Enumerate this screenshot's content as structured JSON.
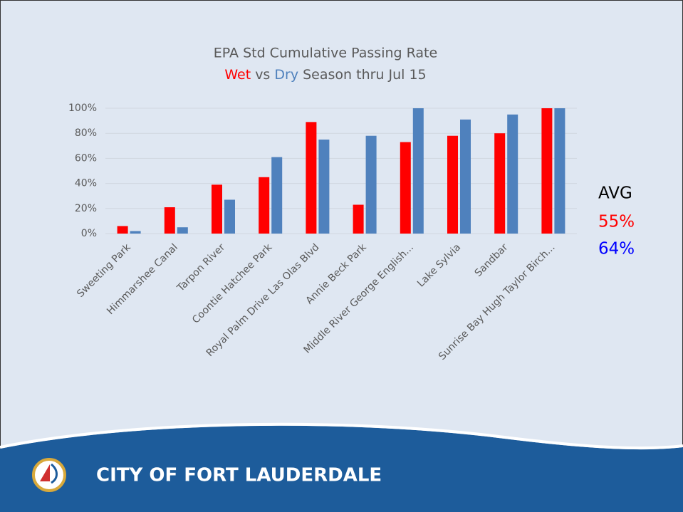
{
  "chart_data": {
    "type": "bar",
    "title": "EPA Std Cumulative Passing Rate",
    "subtitle_parts": [
      "vs",
      "Season thru Jul 15"
    ],
    "categories": [
      "Sweeting Park",
      "Himmarshee Canal",
      "Tarpon River",
      "Coontie Hatchee Park",
      "Royal Palm Drive Las Olas Blvd",
      "Annie Beck Park",
      "Middle River George English...",
      "Lake Sylvia",
      "Sandbar",
      "Sunrise Bay Hugh Taylor Birch..."
    ],
    "series": [
      {
        "name": "Wet",
        "color": "#ff0000",
        "values": [
          6,
          21,
          39,
          45,
          89,
          23,
          73,
          78,
          80,
          100
        ]
      },
      {
        "name": "Dry",
        "color": "#4f81bd",
        "values": [
          2,
          5,
          27,
          61,
          75,
          78,
          100,
          91,
          95,
          100
        ]
      }
    ],
    "ylim": [
      0,
      100
    ],
    "yticks": [
      {
        "value": 0,
        "label": "0%"
      },
      {
        "value": 20,
        "label": "20%"
      },
      {
        "value": 40,
        "label": "40%"
      },
      {
        "value": 60,
        "label": "60%"
      },
      {
        "value": 80,
        "label": "80%"
      },
      {
        "value": 100,
        "label": "100%"
      }
    ],
    "grid": true,
    "annotations": [
      {
        "text": "AVG",
        "color": "#000000"
      },
      {
        "text": "55%",
        "color": "#ff0000"
      },
      {
        "text": "64%",
        "color": "#0000ff"
      }
    ]
  },
  "footer": {
    "text": "CITY OF FORT LAUDERDALE"
  }
}
